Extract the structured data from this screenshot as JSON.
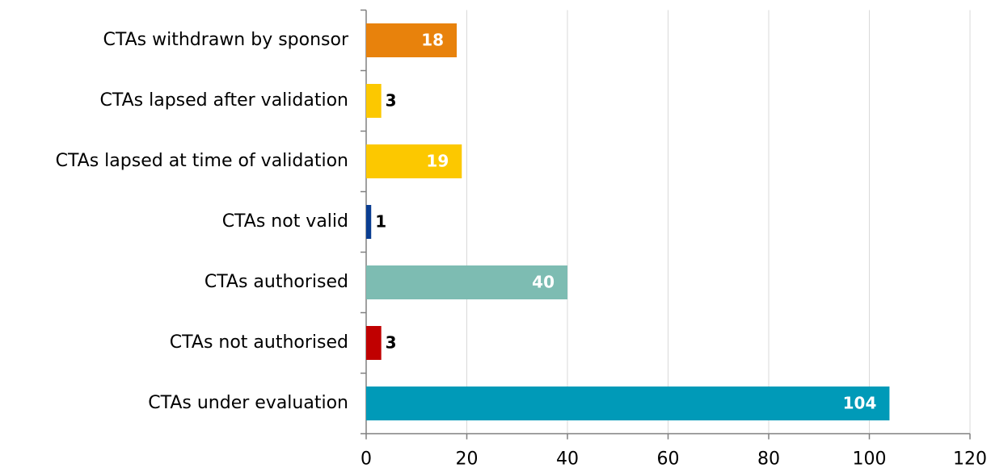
{
  "chart_data": {
    "type": "bar",
    "orientation": "horizontal",
    "categories": [
      "CTAs withdrawn by sponsor",
      "CTAs lapsed after validation",
      "CTAs lapsed at time of validation",
      "CTAs not valid",
      "CTAs authorised",
      "CTAs not authorised",
      "CTAs under evaluation"
    ],
    "values": [
      18,
      3,
      19,
      1,
      40,
      3,
      104
    ],
    "colors": [
      "#e8820c",
      "#fcc800",
      "#fcc800",
      "#0a3d91",
      "#7dbcb2",
      "#c00000",
      "#009ab8"
    ],
    "xlim": [
      0,
      120
    ],
    "xticks": [
      0,
      20,
      40,
      60,
      80,
      100,
      120
    ],
    "grid": true
  }
}
